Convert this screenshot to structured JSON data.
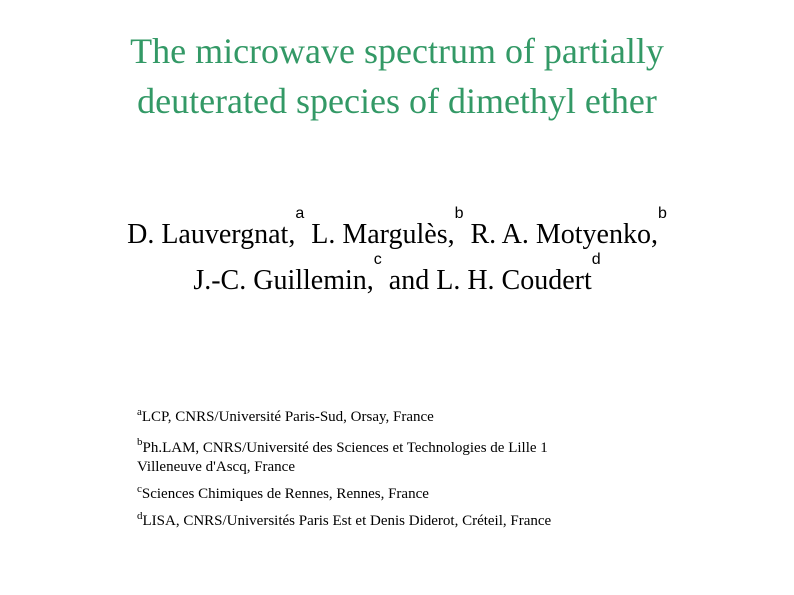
{
  "title": {
    "line1": "The microwave spectrum of partially",
    "line2": "deuterated species of dimethyl ether",
    "color": "#339966"
  },
  "authors": {
    "line1": [
      {
        "name": "D. Lauvergnat,",
        "sup": "a"
      },
      {
        "name": "L. Margulès,",
        "sup": "b"
      },
      {
        "name": "R. A. Motyenko,",
        "sup": "b"
      }
    ],
    "line2": [
      {
        "name": "J.-C. Guillemin,",
        "sup": "c"
      },
      {
        "name": "and L. H. Coudert",
        "sup": "d"
      }
    ]
  },
  "affiliations": [
    {
      "sup": "a",
      "text": "LCP, CNRS/Université Paris-Sud, Orsay, France"
    },
    {
      "sup": "b",
      "text": "Ph.LAM, CNRS/Université des Sciences et Technologies de Lille 1",
      "text2": "Villeneuve d'Ascq, France"
    },
    {
      "sup": "c",
      "text": "Sciences Chimiques de Rennes, Rennes, France"
    },
    {
      "sup": "d",
      "text": "LISA, CNRS/Universités Paris Est et Denis Diderot, Créteil, France"
    }
  ]
}
